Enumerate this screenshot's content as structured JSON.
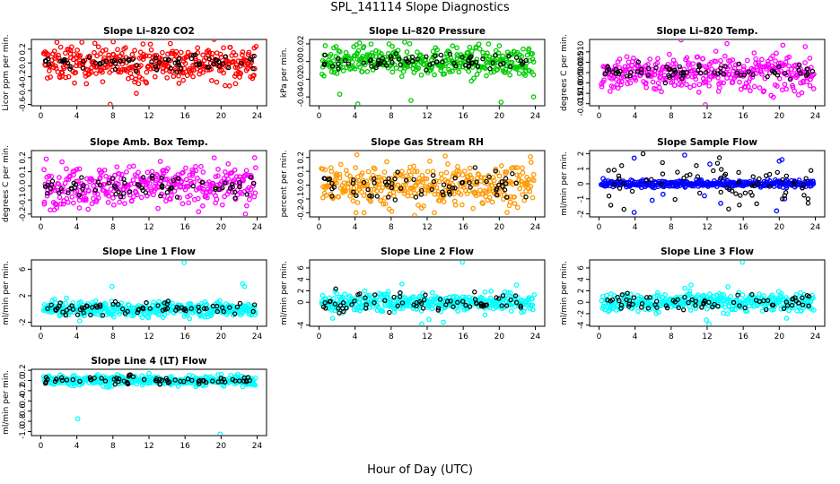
{
  "page": {
    "title": "SPL_141114  Slope Diagnostics",
    "xlabel": "Hour of Day (UTC)"
  },
  "chart_data": [
    {
      "type": "scatter",
      "title": "Slope Li–820 CO2",
      "ylabel": "Licor ppm per min.",
      "color": "#ff0000",
      "xlim": [
        0,
        24
      ],
      "ylim": [
        -0.62,
        0.34
      ],
      "xticks": [
        0,
        4,
        8,
        12,
        16,
        20,
        24
      ],
      "yticks": [
        -0.6,
        -0.4,
        -0.2,
        0.0,
        0.2
      ],
      "yticklabels": [
        "-0.6",
        "-0.4",
        "-0.2",
        "0.0",
        "0.2"
      ],
      "spread": 0.13,
      "spread_black": 0.06,
      "outliers": [
        [
          2.1,
          -0.2
        ],
        [
          7.7,
          -0.6
        ],
        [
          10.6,
          -0.44
        ],
        [
          15.8,
          -0.25
        ],
        [
          21.6,
          -0.3
        ]
      ]
    },
    {
      "type": "scatter",
      "title": "Slope Li–820 Pressure",
      "ylabel": "kPa per min.",
      "color": "#00cc00",
      "xlim": [
        0,
        24
      ],
      "ylim": [
        -0.05,
        0.025
      ],
      "xticks": [
        0,
        4,
        8,
        12,
        16,
        20,
        24
      ],
      "yticks": [
        -0.04,
        -0.02,
        0.0,
        0.02
      ],
      "yticklabels": [
        "-0.04",
        "-0.02",
        "0.00",
        "0.02"
      ],
      "spread": 0.008,
      "spread_black": 0.004,
      "outliers": [
        [
          2.3,
          -0.037
        ],
        [
          4.3,
          -0.048
        ],
        [
          10.2,
          -0.044
        ],
        [
          16.9,
          -0.022
        ],
        [
          20.2,
          -0.046
        ],
        [
          23.8,
          -0.04
        ],
        [
          4.5,
          0.021
        ],
        [
          9.5,
          0.022
        ]
      ]
    },
    {
      "type": "scatter",
      "title": "Slope Li–820 Temp.",
      "ylabel": "degrees C per min.",
      "color": "#ff00ff",
      "xlim": [
        0,
        24
      ],
      "ylim": [
        -0.016,
        0.016
      ],
      "xticks": [
        0,
        4,
        8,
        12,
        16,
        20,
        24
      ],
      "yticks": [
        -0.015,
        -0.01,
        -0.005,
        0.0,
        0.005,
        0.01
      ],
      "yticklabels": [
        "-0.015",
        "-0.010",
        "-0.005",
        "0.000",
        "0.005",
        "0.010"
      ],
      "spread": 0.0045,
      "spread_black": 0.002,
      "outliers": [
        [
          9.1,
          0.0158
        ],
        [
          11.8,
          -0.0155
        ],
        [
          14.2,
          0.014
        ],
        [
          19.1,
          -0.011
        ]
      ]
    },
    {
      "type": "scatter",
      "title": "Slope Amb. Box Temp.",
      "ylabel": "degrees C per min.",
      "color": "#ff00ff",
      "xlim": [
        0,
        24
      ],
      "ylim": [
        -0.22,
        0.25
      ],
      "xticks": [
        0,
        4,
        8,
        12,
        16,
        20,
        24
      ],
      "yticks": [
        -0.2,
        -0.1,
        0.0,
        0.1,
        0.2
      ],
      "yticklabels": [
        "-0.2",
        "-0.1",
        "0.0",
        "0.1",
        "0.2"
      ],
      "spread": 0.07,
      "spread_black": 0.035,
      "outliers": [
        [
          0.6,
          0.19
        ],
        [
          1.5,
          -0.17
        ],
        [
          4.3,
          0.12
        ],
        [
          13.0,
          -0.16
        ],
        [
          22.7,
          -0.2
        ]
      ]
    },
    {
      "type": "scatter",
      "title": "Slope Gas Stream RH",
      "ylabel": "percent per min.",
      "color": "#ff9900",
      "xlim": [
        0,
        24
      ],
      "ylim": [
        -0.23,
        0.25
      ],
      "xticks": [
        0,
        4,
        8,
        12,
        16,
        20,
        24
      ],
      "yticks": [
        -0.2,
        -0.1,
        0.0,
        0.1,
        0.2
      ],
      "yticklabels": [
        "-0.2",
        "-0.1",
        "0.0",
        "0.1",
        "0.2"
      ],
      "spread": 0.075,
      "spread_black": 0.05,
      "outliers": [
        [
          4.2,
          0.22
        ],
        [
          4.1,
          -0.2
        ],
        [
          5.0,
          -0.2
        ],
        [
          10.6,
          -0.22
        ],
        [
          12.8,
          -0.2
        ],
        [
          14.0,
          0.21
        ]
      ]
    },
    {
      "type": "scatter",
      "title": "Slope Sample Flow",
      "ylabel": "ml/min per min.",
      "color": "#0000ff",
      "xlim": [
        0,
        24
      ],
      "ylim": [
        -2.2,
        2.2
      ],
      "xticks": [
        0,
        4,
        8,
        12,
        16,
        20,
        24
      ],
      "yticks": [
        -2,
        -1,
        0,
        1,
        2
      ],
      "yticklabels": [
        "-2",
        "-1",
        "0",
        "1",
        "2"
      ],
      "spread": 0.12,
      "spread_black": 0.8,
      "outliers": [
        [
          3.9,
          -1.9
        ],
        [
          3.9,
          1.7
        ],
        [
          5.9,
          -1.1
        ],
        [
          7.1,
          -0.7
        ],
        [
          9.5,
          1.9
        ],
        [
          11.7,
          -0.8
        ],
        [
          12.3,
          1.3
        ],
        [
          13.5,
          -1.3
        ],
        [
          19.7,
          -1.8
        ],
        [
          20.0,
          1.5
        ],
        [
          20.6,
          -1.0
        ],
        [
          20.3,
          1.6
        ]
      ]
    },
    {
      "type": "scatter",
      "title": "Slope Line 1 Flow",
      "ylabel": "ml/min per min.",
      "color": "#00ffff",
      "xlim": [
        0,
        24
      ],
      "ylim": [
        -2.6,
        7.4
      ],
      "xticks": [
        0,
        4,
        8,
        12,
        16,
        20,
        24
      ],
      "yticks": [
        -2,
        2,
        6
      ],
      "yticklabels": [
        "-2",
        "2",
        "6"
      ],
      "spread": 0.55,
      "spread_black": 0.55,
      "outliers": [
        [
          15.9,
          7.0
        ],
        [
          7.9,
          3.4
        ],
        [
          22.4,
          3.8
        ],
        [
          22.6,
          3.4
        ],
        [
          4.3,
          -1.8
        ],
        [
          8.1,
          -1.2
        ]
      ]
    },
    {
      "type": "scatter",
      "title": "Slope Line 2 Flow",
      "ylabel": "ml/min per min.",
      "color": "#00ffff",
      "xlim": [
        0,
        24
      ],
      "ylim": [
        -4.2,
        7.4
      ],
      "xticks": [
        0,
        4,
        8,
        12,
        16,
        20,
        24
      ],
      "yticks": [
        -4,
        0,
        2,
        4,
        6
      ],
      "yticklabels": [
        "-4",
        "0",
        "2",
        "4",
        "6"
      ],
      "spread": 0.8,
      "spread_black": 0.8,
      "outliers": [
        [
          15.9,
          7.0
        ],
        [
          21.9,
          3.0
        ],
        [
          1.5,
          -2.8
        ],
        [
          11.4,
          -3.8
        ],
        [
          12.2,
          -3.0
        ],
        [
          13.8,
          -3.5
        ],
        [
          9.2,
          3.2
        ]
      ]
    },
    {
      "type": "scatter",
      "title": "Slope Line 3 Flow",
      "ylabel": "ml/min per min.",
      "color": "#00ffff",
      "xlim": [
        0,
        24
      ],
      "ylim": [
        -4.2,
        7.4
      ],
      "xticks": [
        0,
        4,
        8,
        12,
        16,
        20,
        24
      ],
      "yticks": [
        -4,
        -2,
        0,
        2,
        4,
        6
      ],
      "yticklabels": [
        "-4",
        "-2",
        "0",
        "2",
        "4",
        "6"
      ],
      "spread": 0.8,
      "spread_black": 0.8,
      "outliers": [
        [
          15.9,
          7.0
        ],
        [
          10.2,
          3.0
        ],
        [
          11.9,
          -3.1
        ],
        [
          12.2,
          -3.8
        ],
        [
          20.8,
          -2.8
        ],
        [
          14.3,
          2.7
        ]
      ]
    },
    {
      "type": "scatter",
      "title": "Slope Line 4 (LT) Flow",
      "ylabel": "ml/min per min.",
      "color": "#00ffff",
      "xlim": [
        0,
        24
      ],
      "ylim": [
        -1.08,
        0.22
      ],
      "xticks": [
        0,
        4,
        8,
        12,
        16,
        20,
        24
      ],
      "yticks": [
        -1.0,
        -0.8,
        -0.6,
        -0.4,
        -0.2,
        0.0,
        0.2
      ],
      "yticklabels": [
        "-1.0",
        "-0.8",
        "-0.6",
        "-0.4",
        "-0.2",
        "0.0",
        "0.2"
      ],
      "spread": 0.05,
      "spread_black": 0.04,
      "outliers": [
        [
          4.1,
          -0.75
        ],
        [
          19.9,
          -1.05
        ],
        [
          12.0,
          0.14
        ],
        [
          7.5,
          -0.13
        ]
      ]
    }
  ]
}
